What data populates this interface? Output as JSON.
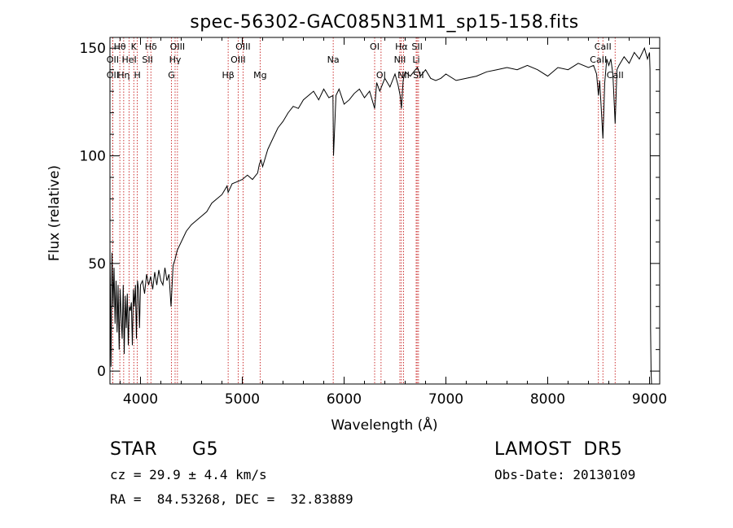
{
  "chart_data": {
    "type": "line",
    "title": "spec-56302-GAC085N31M1_sp15-158.fits",
    "xlabel": "Wavelength (Å)",
    "ylabel": "Flux (relative)",
    "xlim": [
      3700,
      9100
    ],
    "ylim": [
      -6,
      155
    ],
    "xticks": [
      {
        "value": 4000,
        "label": "4000"
      },
      {
        "value": 5000,
        "label": "5000"
      },
      {
        "value": 6000,
        "label": "6000"
      },
      {
        "value": 7000,
        "label": "7000"
      },
      {
        "value": 8000,
        "label": "8000"
      },
      {
        "value": 9000,
        "label": "9000"
      }
    ],
    "yticks": [
      {
        "value": 0,
        "label": "0"
      },
      {
        "value": 50,
        "label": "50"
      },
      {
        "value": 100,
        "label": "100"
      },
      {
        "value": 150,
        "label": "150"
      }
    ],
    "grid": false,
    "series": [
      {
        "color": "#000000",
        "x": [
          3700,
          3710,
          3720,
          3730,
          3740,
          3750,
          3760,
          3770,
          3780,
          3790,
          3800,
          3810,
          3820,
          3830,
          3840,
          3850,
          3860,
          3870,
          3880,
          3890,
          3900,
          3910,
          3920,
          3930,
          3940,
          3950,
          3960,
          3970,
          3980,
          3990,
          4000,
          4020,
          4040,
          4060,
          4080,
          4100,
          4120,
          4140,
          4160,
          4180,
          4200,
          4220,
          4240,
          4260,
          4280,
          4300,
          4320,
          4340,
          4360,
          4380,
          4400,
          4450,
          4500,
          4550,
          4600,
          4650,
          4700,
          4750,
          4800,
          4850,
          4861,
          4900,
          4950,
          5000,
          5050,
          5100,
          5150,
          5167,
          5183,
          5200,
          5250,
          5300,
          5350,
          5400,
          5450,
          5500,
          5550,
          5600,
          5650,
          5700,
          5750,
          5800,
          5850,
          5890,
          5896,
          5920,
          5950,
          6000,
          6050,
          6100,
          6150,
          6200,
          6250,
          6300,
          6320,
          6350,
          6400,
          6450,
          6500,
          6530,
          6550,
          6563,
          6580,
          6600,
          6650,
          6700,
          6720,
          6750,
          6800,
          6850,
          6900,
          6950,
          7000,
          7100,
          7200,
          7300,
          7400,
          7500,
          7600,
          7700,
          7800,
          7900,
          8000,
          8100,
          8200,
          8300,
          8400,
          8450,
          8480,
          8498,
          8510,
          8542,
          8560,
          8580,
          8600,
          8620,
          8640,
          8662,
          8680,
          8700,
          8750,
          8800,
          8850,
          8900,
          8950,
          8980,
          9000,
          9005,
          9010,
          9015,
          9020
        ],
        "y": [
          60,
          2,
          55,
          30,
          48,
          22,
          42,
          18,
          40,
          10,
          38,
          25,
          15,
          40,
          8,
          35,
          20,
          36,
          12,
          30,
          28,
          32,
          12,
          38,
          30,
          40,
          15,
          42,
          38,
          20,
          40,
          42,
          36,
          45,
          40,
          44,
          38,
          46,
          40,
          47,
          42,
          40,
          48,
          42,
          45,
          30,
          49,
          52,
          56,
          58,
          60,
          65,
          68,
          70,
          72,
          74,
          78,
          80,
          82,
          86,
          83,
          87,
          88,
          89,
          91,
          89,
          92,
          96,
          98,
          95,
          103,
          108,
          113,
          116,
          120,
          123,
          122,
          126,
          128,
          130,
          126,
          131,
          127,
          128,
          100,
          128,
          131,
          124,
          126,
          129,
          131,
          127,
          130,
          122,
          134,
          130,
          136,
          132,
          138,
          133,
          128,
          122,
          135,
          139,
          137,
          140,
          141,
          137,
          140,
          136,
          135,
          136,
          138,
          135,
          136,
          137,
          139,
          140,
          141,
          140,
          142,
          140,
          137,
          141,
          140,
          143,
          141,
          142,
          138,
          128,
          135,
          108,
          134,
          145,
          142,
          145,
          138,
          115,
          140,
          142,
          146,
          143,
          148,
          145,
          150,
          145,
          148,
          140,
          20,
          0,
          -6
        ]
      }
    ],
    "lines": [
      {
        "label": "Hθ",
        "x": 3797,
        "row": 0
      },
      {
        "label": "OII",
        "x": 3727,
        "row": 1
      },
      {
        "label": "OII",
        "x": 3727,
        "row": 2
      },
      {
        "label": "K",
        "x": 3934,
        "row": 0
      },
      {
        "label": "HeI",
        "x": 3889,
        "row": 1
      },
      {
        "label": "Hη",
        "x": 3835,
        "row": 2
      },
      {
        "label": "Hδ",
        "x": 4102,
        "row": 0
      },
      {
        "label": "SII",
        "x": 4069,
        "row": 1
      },
      {
        "label": "H",
        "x": 3969,
        "row": 2
      },
      {
        "label": "OIII",
        "x": 4363,
        "row": 0
      },
      {
        "label": "Hγ",
        "x": 4340,
        "row": 1
      },
      {
        "label": "G",
        "x": 4304,
        "row": 2
      },
      {
        "label": "OIII",
        "x": 5007,
        "row": 0
      },
      {
        "label": "OIII",
        "x": 4959,
        "row": 1
      },
      {
        "label": "Hβ",
        "x": 4861,
        "row": 2
      },
      {
        "label": "Mg",
        "x": 5175,
        "row": 2
      },
      {
        "label": "Na",
        "x": 5893,
        "row": 1
      },
      {
        "label": "OI",
        "x": 6300,
        "row": 0
      },
      {
        "label": "OI",
        "x": 6363,
        "row": 2
      },
      {
        "label": "Hα",
        "x": 6563,
        "row": 0
      },
      {
        "label": "NII",
        "x": 6548,
        "row": 1
      },
      {
        "label": "NII",
        "x": 6584,
        "row": 2
      },
      {
        "label": "SII",
        "x": 6717,
        "row": 0
      },
      {
        "label": "Li",
        "x": 6708,
        "row": 1
      },
      {
        "label": "SII",
        "x": 6731,
        "row": 2
      },
      {
        "label": "CaII",
        "x": 8542,
        "row": 0
      },
      {
        "label": "CaII",
        "x": 8498,
        "row": 1
      },
      {
        "label": "CaII",
        "x": 8662,
        "row": 2
      }
    ]
  },
  "info": {
    "class_label": "STAR",
    "subclass": "G5",
    "survey": "LAMOST  DR5",
    "redshift_line": "cz = 29.9 ± 4.4 km/s",
    "obs_date_line": "Obs-Date: 20130109",
    "coord_line": "RA =  84.53268, DEC =  32.83889"
  }
}
